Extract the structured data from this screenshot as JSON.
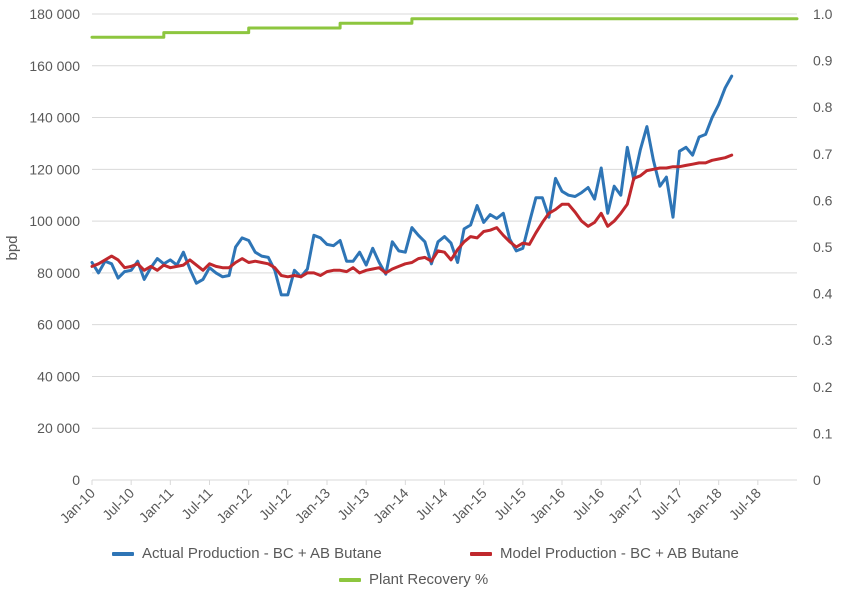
{
  "chart_data": {
    "type": "line",
    "title": "",
    "xlabel": "",
    "ylabel": "bpd",
    "x_tick_labels": [
      "Jan-10",
      "Jul-10",
      "Jan-11",
      "Jul-11",
      "Jan-12",
      "Jul-12",
      "Jan-13",
      "Jul-13",
      "Jan-14",
      "Jul-14",
      "Jan-15",
      "Jul-15",
      "Jan-16",
      "Jul-16",
      "Jan-17",
      "Jul-17",
      "Jan-18",
      "Jul-18"
    ],
    "y_left": {
      "min": 0,
      "max": 180000,
      "step": 20000,
      "tick_labels": [
        "0",
        "20 000",
        "40 000",
        "60 000",
        "80 000",
        "100 000",
        "120 000",
        "140 000",
        "160 000",
        "180 000"
      ]
    },
    "y_right": {
      "min": 0,
      "max": 1.0,
      "step": 0.1,
      "tick_labels": [
        "0",
        "0.1",
        "0.2",
        "0.3",
        "0.4",
        "0.5",
        "0.6",
        "0.7",
        "0.8",
        "0.9",
        "1.0"
      ]
    },
    "x_months": 108,
    "grid": "horizontal",
    "legend_position": "bottom",
    "series": [
      {
        "name": "Actual Production - BC + AB Butane",
        "axis": "left",
        "color": "#2E75B6",
        "start": "Jan-10",
        "values": [
          84000,
          80000,
          84500,
          83500,
          78000,
          80500,
          81000,
          84500,
          77500,
          82000,
          85500,
          83500,
          85000,
          83000,
          88000,
          81500,
          76000,
          77500,
          82000,
          80000,
          78500,
          79000,
          90000,
          93500,
          92500,
          88000,
          86500,
          86000,
          81000,
          71500,
          71500,
          81000,
          78500,
          81500,
          94500,
          93500,
          91000,
          90500,
          92500,
          84500,
          84500,
          88000,
          83000,
          89500,
          84000,
          79500,
          92000,
          88500,
          88000,
          97500,
          94500,
          92000,
          83500,
          92000,
          94000,
          91500,
          84000,
          97000,
          98500,
          106000,
          99500,
          102500,
          101000,
          103000,
          93000,
          88500,
          89500,
          99500,
          109000,
          109000,
          101500,
          116500,
          111500,
          110000,
          109500,
          111000,
          113000,
          108500,
          120500,
          103000,
          113500,
          110000,
          128500,
          116000,
          127500,
          136500,
          123500,
          113500,
          117000,
          101500,
          127000,
          128500,
          125500,
          132500,
          133500,
          140000,
          145000,
          151500,
          156000
        ]
      },
      {
        "name": "Model Production - BC + AB Butane",
        "axis": "left",
        "color": "#C0282D",
        "start": "Jan-10",
        "values": [
          82500,
          83500,
          85000,
          86500,
          85000,
          82000,
          82500,
          83500,
          81000,
          82500,
          81000,
          83000,
          82000,
          82500,
          83000,
          85000,
          83000,
          81000,
          83500,
          82500,
          82000,
          82000,
          84000,
          85500,
          84000,
          84500,
          84000,
          83500,
          82000,
          79000,
          78500,
          79000,
          78500,
          80000,
          80000,
          79000,
          80500,
          81000,
          81000,
          80500,
          82000,
          80000,
          81000,
          81500,
          82000,
          80000,
          81500,
          82500,
          83500,
          84000,
          85500,
          86000,
          84500,
          88500,
          88000,
          85000,
          89000,
          92000,
          94000,
          93500,
          96000,
          96500,
          97500,
          94500,
          92000,
          90000,
          91500,
          91000,
          95500,
          99500,
          103000,
          104500,
          106500,
          106500,
          103500,
          100000,
          98000,
          99500,
          103000,
          98000,
          100000,
          103000,
          106500,
          116500,
          117500,
          119500,
          120000,
          120500,
          120500,
          121000,
          121000,
          121500,
          122000,
          122500,
          122500,
          123500,
          124000,
          124500,
          125500
        ]
      },
      {
        "name": "Plant Recovery %",
        "axis": "right",
        "color": "#8DC63F",
        "start": "Jan-10",
        "steps": [
          {
            "from": 0,
            "to": 11,
            "value": 0.95
          },
          {
            "from": 11,
            "to": 24,
            "value": 0.96
          },
          {
            "from": 24,
            "to": 38,
            "value": 0.97
          },
          {
            "from": 38,
            "to": 49,
            "value": 0.98
          },
          {
            "from": 49,
            "to": 108,
            "value": 0.99
          }
        ]
      }
    ]
  },
  "colors": {
    "actual": "#2E75B6",
    "model": "#C0282D",
    "recovery": "#8DC63F",
    "grid": "#D9D9D9",
    "text": "#595959"
  }
}
